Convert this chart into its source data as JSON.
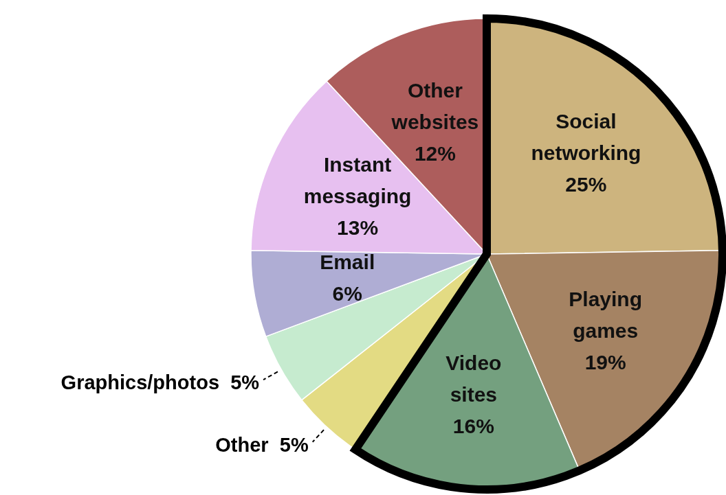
{
  "chart_data": {
    "type": "pie",
    "categories": [
      "Social networking",
      "Playing games",
      "Video sites",
      "Other",
      "Graphics/photos",
      "Email",
      "Instant messaging",
      "Other websites"
    ],
    "values": [
      25,
      19,
      16,
      5,
      5,
      6,
      13,
      12
    ],
    "value_labels": [
      "25%",
      "19%",
      "16%",
      "5%",
      "5%",
      "6%",
      "13%",
      "12%"
    ],
    "colors": [
      "#cdb47e",
      "#a58363",
      "#74a07f",
      "#e3db83",
      "#c6ebcf",
      "#afadd4",
      "#e7c0f0",
      "#ad5d5c"
    ]
  }
}
